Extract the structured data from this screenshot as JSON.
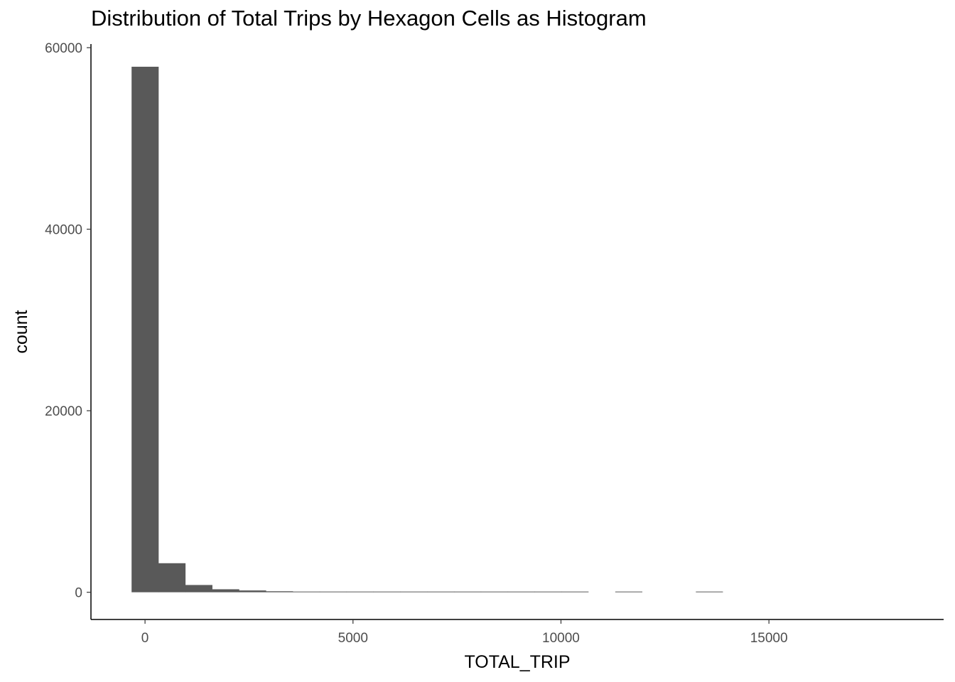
{
  "chart_data": {
    "type": "bar",
    "title": "Distribution of Total Trips by Hexagon Cells as Histogram",
    "xlabel": "TOTAL_TRIP",
    "ylabel": "count",
    "xlim": [
      -1300,
      19200
    ],
    "ylim": [
      -3000,
      60400
    ],
    "x_ticks": [
      0,
      5000,
      10000,
      15000
    ],
    "y_ticks": [
      0,
      20000,
      40000,
      60000
    ],
    "x_tick_labels": [
      "0",
      "5000",
      "10000",
      "15000"
    ],
    "y_tick_labels": [
      "0",
      "20000",
      "40000",
      "60000"
    ],
    "bin_width": 646,
    "bins": [
      {
        "x": 0,
        "count": 57900
      },
      {
        "x": 646,
        "count": 3200
      },
      {
        "x": 1292,
        "count": 800
      },
      {
        "x": 1938,
        "count": 330
      },
      {
        "x": 2584,
        "count": 200
      },
      {
        "x": 3230,
        "count": 110
      },
      {
        "x": 3876,
        "count": 60
      },
      {
        "x": 4522,
        "count": 40
      },
      {
        "x": 5168,
        "count": 30
      },
      {
        "x": 5814,
        "count": 25
      },
      {
        "x": 6460,
        "count": 20
      },
      {
        "x": 7106,
        "count": 15
      },
      {
        "x": 7752,
        "count": 10
      },
      {
        "x": 8398,
        "count": 8
      },
      {
        "x": 9044,
        "count": 6
      },
      {
        "x": 9690,
        "count": 5
      },
      {
        "x": 10336,
        "count": 3
      },
      {
        "x": 10982,
        "count": 0
      },
      {
        "x": 11628,
        "count": 2
      },
      {
        "x": 12274,
        "count": 0
      },
      {
        "x": 12920,
        "count": 0
      },
      {
        "x": 13566,
        "count": 1
      }
    ],
    "bar_color": "#595959",
    "grid": false,
    "legend": "none"
  }
}
